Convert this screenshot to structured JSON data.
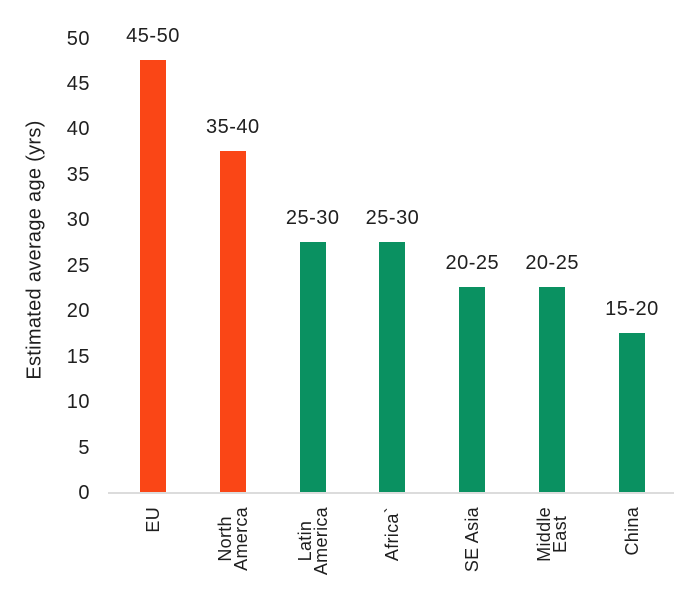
{
  "chart_data": {
    "type": "bar",
    "title": "",
    "xlabel": "",
    "ylabel": "Estimated average age (yrs)",
    "ylim": [
      0,
      50
    ],
    "yticks": [
      0,
      5,
      10,
      15,
      20,
      25,
      30,
      35,
      40,
      45,
      50
    ],
    "grid": false,
    "legend": null,
    "categories": [
      "EU",
      "North Amerca",
      "Latin America",
      "Africa`",
      "SE Asia",
      "Middle East",
      "China"
    ],
    "category_lines": [
      [
        "EU"
      ],
      [
        "North",
        "Amerca"
      ],
      [
        "Latin",
        "America"
      ],
      [
        "Africa`"
      ],
      [
        "SE Asia"
      ],
      [
        "Middle",
        "East"
      ],
      [
        "China"
      ]
    ],
    "values": [
      47.5,
      37.5,
      27.5,
      27.5,
      22.5,
      22.5,
      17.5
    ],
    "bar_labels": [
      "45-50",
      "35-40",
      "25-30",
      "25-30",
      "20-25",
      "20-25",
      "15-20"
    ],
    "bar_colors": [
      "#fa4616",
      "#fa4616",
      "#0a9161",
      "#0a9161",
      "#0a9161",
      "#0a9161",
      "#0a9161"
    ],
    "colors": {
      "orange": "#fa4616",
      "green": "#0a9161",
      "axis_line": "#dcdcdc",
      "text": "#1f1f1f",
      "background": "#ffffff"
    }
  }
}
